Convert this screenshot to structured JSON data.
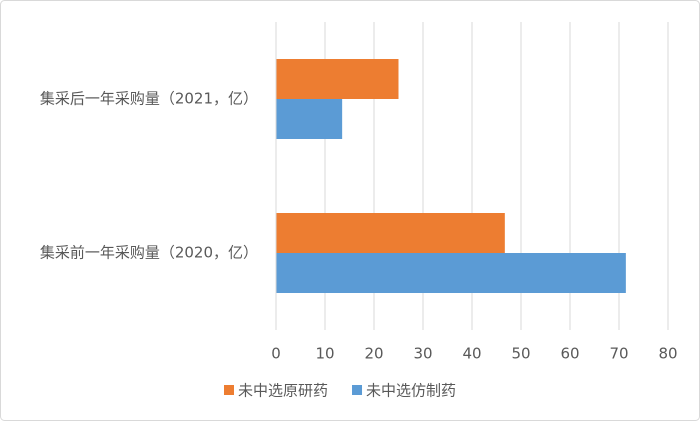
{
  "chart_data": {
    "type": "hbar",
    "categories": [
      "集采后一年采购量（2021，亿）",
      "集采前一年采购量（2020，亿）"
    ],
    "series": [
      {
        "name": "未中选原研药",
        "color": "#ED7D31",
        "values": [
          25,
          46.7
        ]
      },
      {
        "name": "未中选仿制药",
        "color": "#5B9BD5",
        "values": [
          13.5,
          71.4
        ]
      }
    ],
    "xlim": [
      0,
      80
    ],
    "xticks": [
      0,
      10,
      20,
      30,
      40,
      50,
      60,
      70,
      80
    ],
    "grid": true,
    "legend": "bottom"
  }
}
